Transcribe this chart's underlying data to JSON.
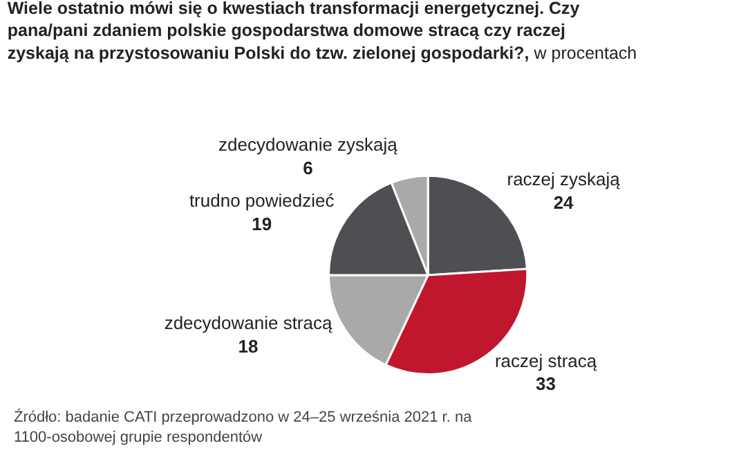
{
  "chart_data": {
    "type": "pie",
    "title": "Wiele ostatnio mówi się o kwestiach transformacji energetycznej. Czy pana/pani zdaniem polskie gospodarstwa domowe stracą czy raczej zyskają na przystosowaniu Polski do tzw. zielonej gospodarki?,",
    "subtitle": "w procentach",
    "categories": [
      "raczej zyskają",
      "raczej stracą",
      "zdecydowanie stracą",
      "trudno powiedzieć",
      "zdecydowanie zyskają"
    ],
    "values": [
      24,
      33,
      18,
      19,
      6
    ],
    "colors": [
      "#4d4f53",
      "#c1172e",
      "#a9a9a7",
      "#4d4f53",
      "#a9a9a7"
    ],
    "data_labels": true,
    "legend": false,
    "annotations": [
      "Źródło: badanie CATI przeprowadzono w 24–25 września 2021 r. na 1100-osobowej grupie respondentów"
    ]
  }
}
